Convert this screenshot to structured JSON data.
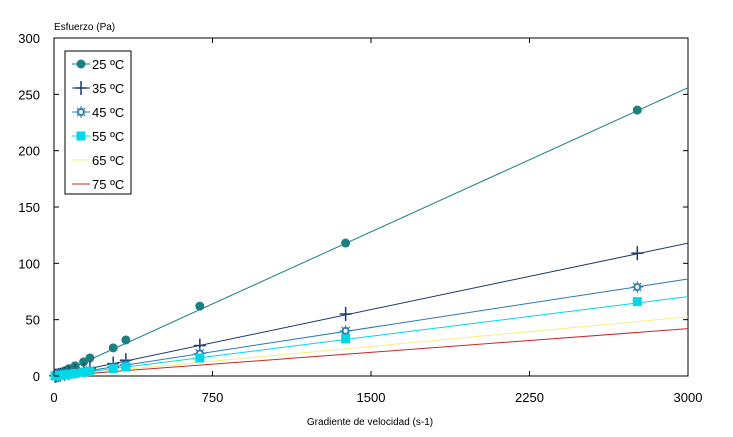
{
  "chart_data": {
    "type": "scatter",
    "title": "",
    "xlabel": "Gradiente de velocidad (s-1)",
    "ylabel": "Esfuerzo (Pa)",
    "xlim": [
      0,
      3000
    ],
    "ylim": [
      0,
      300
    ],
    "xticks": [
      "0",
      "750",
      "1500",
      "2250",
      "3000"
    ],
    "yticks": [
      "0",
      "50",
      "100",
      "150",
      "200",
      "250",
      "300"
    ],
    "legend_position": "top-left",
    "grid": false,
    "series": [
      {
        "name": "25 ºC",
        "color": "#1a8080",
        "marker": "circle",
        "line_slope": 0.0853,
        "x": [
          5,
          10,
          20,
          30,
          50,
          70,
          100,
          140,
          170,
          280,
          340,
          690,
          1380,
          2760
        ],
        "y": [
          0.5,
          1,
          2,
          3,
          4.5,
          6.5,
          9,
          12.5,
          16,
          25,
          32,
          62,
          118,
          236
        ]
      },
      {
        "name": "35 ºC",
        "color": "#1a3a6a",
        "marker": "plus",
        "line_slope": 0.0393,
        "x": [
          5,
          10,
          20,
          30,
          50,
          70,
          100,
          140,
          170,
          280,
          340,
          690,
          1380,
          2760
        ],
        "y": [
          0.2,
          0.4,
          0.8,
          1.2,
          2,
          2.8,
          4,
          5.5,
          7,
          11,
          14,
          27,
          55,
          109
        ]
      },
      {
        "name": "45 ºC",
        "color": "#2a7ab0",
        "marker": "star",
        "line_slope": 0.0287,
        "x": [
          5,
          10,
          20,
          30,
          50,
          70,
          100,
          140,
          170,
          280,
          340,
          690,
          1380,
          2760
        ],
        "y": [
          0.15,
          0.3,
          0.6,
          0.9,
          1.4,
          2,
          2.9,
          4,
          5,
          8,
          10,
          20,
          40,
          79
        ]
      },
      {
        "name": "55 ºC",
        "color": "#00d8e8",
        "marker": "square",
        "line_slope": 0.0235,
        "x": [
          5,
          10,
          20,
          30,
          50,
          70,
          100,
          140,
          170,
          280,
          340,
          690,
          1380,
          2760
        ],
        "y": [
          0.1,
          0.2,
          0.5,
          0.7,
          1.2,
          1.6,
          2.3,
          3.3,
          4,
          6.5,
          8,
          16,
          33,
          66
        ]
      },
      {
        "name": "65 ºC",
        "color": "#f0f080",
        "marker": "none",
        "line_slope": 0.0175,
        "x": [
          0,
          3000
        ],
        "y": [
          0,
          52.5
        ]
      },
      {
        "name": "75 ºC",
        "color": "#c82828",
        "marker": "none",
        "line_slope": 0.014,
        "x": [
          0,
          3000
        ],
        "y": [
          0,
          42
        ]
      }
    ]
  }
}
